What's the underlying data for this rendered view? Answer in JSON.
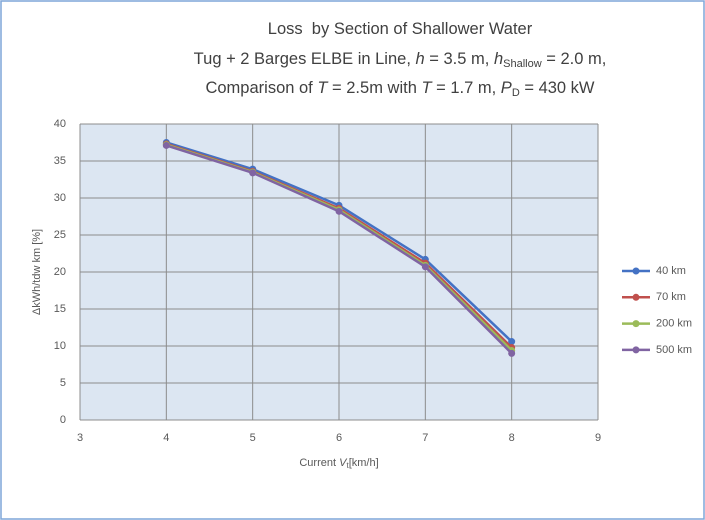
{
  "chart_data": {
    "type": "line",
    "title": [
      [
        "Loss  by Section of Shallower Water"
      ],
      [
        "Tug + 2 Barges ELBE in Line, ",
        "h",
        " = 3.5 m, ",
        "h",
        "Shallow",
        " = 2.0 m,"
      ],
      [
        "Comparison of ",
        "T",
        " = 2.5m with ",
        "T",
        " = 1.7 m, ",
        "P",
        "D",
        " = 430 kW"
      ]
    ],
    "xlabel": [
      "Current ",
      "V",
      "t",
      "[km/h]"
    ],
    "ylabel": "ΔkWh/tdw km [%]",
    "x": [
      4,
      5,
      6,
      7,
      8
    ],
    "series": [
      {
        "name": "40 km",
        "color": "#4472c4",
        "values": [
          37.5,
          33.9,
          29.0,
          21.7,
          10.6
        ]
      },
      {
        "name": "70 km",
        "color": "#c0504d",
        "values": [
          37.3,
          33.6,
          28.6,
          21.2,
          9.8
        ]
      },
      {
        "name": "200 km",
        "color": "#9bbb59",
        "values": [
          37.2,
          33.5,
          28.4,
          20.9,
          9.4
        ]
      },
      {
        "name": "500 km",
        "color": "#8064a2",
        "values": [
          37.1,
          33.4,
          28.2,
          20.7,
          9.0
        ]
      }
    ],
    "xlim": [
      3,
      9
    ],
    "xticks": [
      3,
      4,
      5,
      6,
      7,
      8,
      9
    ],
    "ylim": [
      0,
      40
    ],
    "yticks": [
      0,
      5,
      10,
      15,
      20,
      25,
      30,
      35,
      40
    ],
    "grid": true,
    "legend": "right"
  }
}
